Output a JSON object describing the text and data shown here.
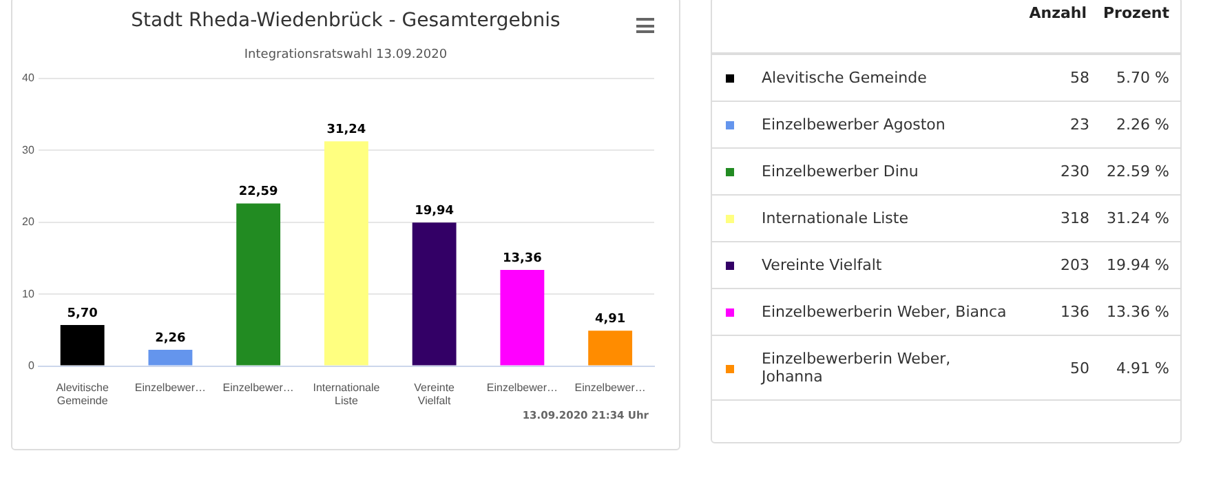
{
  "chart_data": [
    {
      "type": "bar",
      "title": "Stadt Rheda-Wiedenbrück - Gesamtergebnis",
      "subtitle": "Integrationsratswahl 13.09.2020",
      "categories": [
        "Alevitische Gemeinde",
        "Einzelbewer…",
        "Einzelbewer…",
        "Internationale Liste",
        "Vereinte Vielfalt",
        "Einzelbewer…",
        "Einzelbewer…"
      ],
      "values": [
        5.7,
        2.26,
        22.59,
        31.24,
        19.94,
        13.36,
        4.91
      ],
      "value_labels": [
        "5,70",
        "2,26",
        "22,59",
        "31,24",
        "19,94",
        "13,36",
        "4,91"
      ],
      "colors": [
        "#000000",
        "#6495ed",
        "#228b22",
        "#ffff80",
        "#330066",
        "#ff00ff",
        "#ff8c00"
      ],
      "ylim": [
        0,
        40
      ],
      "yticks": [
        0,
        10,
        20,
        30,
        40
      ],
      "grid": "y",
      "legend": false,
      "annotations": [
        "13.09.2020 21:34 Uhr"
      ]
    },
    {
      "type": "other",
      "data_labels": true,
      "categories": [
        "Alevitische Gemeinde",
        "Einzelbewerber Agoston",
        "Einzelbewerber Dinu",
        "Internationale Liste",
        "Vereinte Vielfalt",
        "Einzelbewerberin Weber, Bianca",
        "Einzelbewerberin Weber, Johanna"
      ],
      "colors": [
        "#000000",
        "#6495ed",
        "#228b22",
        "#ffff80",
        "#330066",
        "#ff00ff",
        "#ff8c00"
      ],
      "series": [
        {
          "name": "Anzahl",
          "values": [
            58,
            23,
            230,
            318,
            203,
            136,
            50
          ]
        },
        {
          "name": "Prozent",
          "values": [
            5.7,
            2.26,
            22.59,
            31.24,
            19.94,
            13.36,
            4.91
          ],
          "value_labels": [
            "5.70 %",
            "2.26 %",
            "22.59 %",
            "31.24 %",
            "19.94 %",
            "13.36 %",
            "4.91 %"
          ]
        }
      ]
    }
  ]
}
